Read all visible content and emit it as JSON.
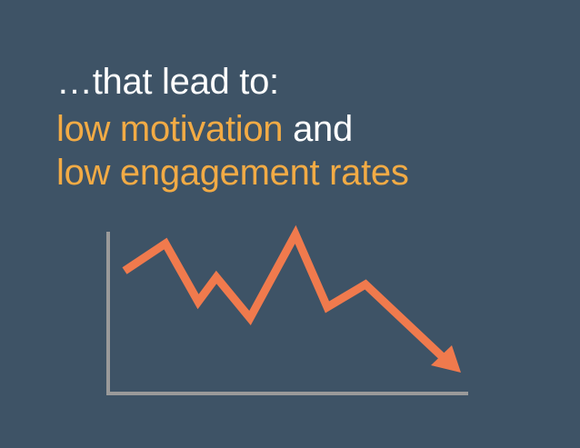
{
  "heading": {
    "intro": "…that lead to:",
    "highlight": "low motivation",
    "connector": "and",
    "second_line": "low engagement rates"
  }
}
